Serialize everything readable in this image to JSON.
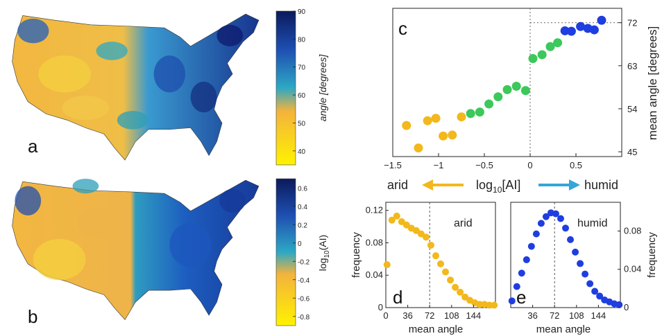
{
  "panels": {
    "a": "a",
    "b": "b",
    "c": "c",
    "d": "d",
    "e": "e"
  },
  "colors": {
    "arid": "#f2b81c",
    "mid": "#3cc85a",
    "humid": "#1e3ee0",
    "dark": "#0d1a6e",
    "teal": "#2e9fb8",
    "map_yellow": "#f4c430",
    "map_orange": "#f0ad3a",
    "map_blue": "#1f5fbf"
  },
  "map_a": {
    "colorbar_label": "angle [degrees]",
    "colorbar_ticks": [
      "90",
      "80",
      "70",
      "60",
      "50",
      "40"
    ],
    "colorbar_tick_values": [
      90,
      80,
      70,
      60,
      50,
      40
    ],
    "colorbar_range": [
      35,
      90
    ]
  },
  "map_b": {
    "colorbar_label_main": "log",
    "colorbar_label_sub": "10",
    "colorbar_label_end": "(AI)",
    "colorbar_ticks": [
      "0.6",
      "0.4",
      "0.2",
      "0",
      "-0.2",
      "-0.4",
      "-0.6",
      "-0.8"
    ],
    "colorbar_tick_values": [
      0.6,
      0.4,
      0.2,
      0,
      -0.2,
      -0.4,
      -0.6,
      -0.8
    ],
    "colorbar_range": [
      -0.9,
      0.7
    ]
  },
  "legend": {
    "arid": "arid",
    "humid": "humid",
    "axis_main": "log",
    "axis_sub": "10",
    "axis_end": "[AI]"
  },
  "chart_data": [
    {
      "id": "c",
      "type": "scatter",
      "ylabel": "mean angle [degrees]",
      "xlim": [
        -1.5,
        1.0
      ],
      "ylim": [
        44,
        75
      ],
      "xticks": [
        -1.5,
        -1,
        -0.5,
        0,
        0.5
      ],
      "xtick_labels": [
        "−1.5",
        "−1",
        "−0.5",
        "0",
        "0.5"
      ],
      "yticks": [
        45,
        54,
        63,
        72
      ],
      "ytick_labels": [
        "45",
        "54",
        "63",
        "72"
      ],
      "reference_lines": {
        "x": 0,
        "y": 72
      },
      "points": [
        {
          "x": -1.35,
          "y": 50.5,
          "group": "arid"
        },
        {
          "x": -1.22,
          "y": 45.8,
          "group": "arid"
        },
        {
          "x": -1.12,
          "y": 51.5,
          "group": "arid"
        },
        {
          "x": -1.03,
          "y": 52.0,
          "group": "arid"
        },
        {
          "x": -0.95,
          "y": 48.3,
          "group": "arid"
        },
        {
          "x": -0.85,
          "y": 48.5,
          "group": "arid"
        },
        {
          "x": -0.75,
          "y": 52.3,
          "group": "arid"
        },
        {
          "x": -0.65,
          "y": 53.0,
          "group": "mid"
        },
        {
          "x": -0.55,
          "y": 53.3,
          "group": "mid"
        },
        {
          "x": -0.45,
          "y": 55.0,
          "group": "mid"
        },
        {
          "x": -0.35,
          "y": 56.5,
          "group": "mid"
        },
        {
          "x": -0.25,
          "y": 58.0,
          "group": "mid"
        },
        {
          "x": -0.15,
          "y": 58.7,
          "group": "mid"
        },
        {
          "x": -0.05,
          "y": 57.8,
          "group": "mid"
        },
        {
          "x": 0.03,
          "y": 64.5,
          "group": "mid"
        },
        {
          "x": 0.13,
          "y": 65.3,
          "group": "mid"
        },
        {
          "x": 0.22,
          "y": 67.0,
          "group": "mid"
        },
        {
          "x": 0.3,
          "y": 67.8,
          "group": "mid"
        },
        {
          "x": 0.38,
          "y": 70.3,
          "group": "humid"
        },
        {
          "x": 0.45,
          "y": 70.2,
          "group": "humid"
        },
        {
          "x": 0.55,
          "y": 71.2,
          "group": "humid"
        },
        {
          "x": 0.63,
          "y": 70.8,
          "group": "humid"
        },
        {
          "x": 0.7,
          "y": 70.5,
          "group": "humid"
        },
        {
          "x": 0.78,
          "y": 72.5,
          "group": "humid"
        }
      ]
    },
    {
      "id": "d",
      "type": "scatter",
      "label": "arid",
      "xlabel": "mean angle",
      "ylabel": "frequency",
      "xlim": [
        0,
        180
      ],
      "ylim": [
        0,
        0.13
      ],
      "xticks": [
        0,
        36,
        72,
        108,
        144
      ],
      "xtick_labels": [
        "0",
        "36",
        "72",
        "108",
        "144"
      ],
      "yticks": [
        0,
        0.04,
        0.08,
        0.12
      ],
      "ytick_labels": [
        "0",
        "0.04",
        "0.08",
        "0.12"
      ],
      "reference_line_x": 72,
      "x": [
        2,
        10,
        18,
        26,
        34,
        42,
        50,
        58,
        66,
        74,
        82,
        90,
        98,
        106,
        114,
        122,
        130,
        138,
        146,
        154,
        162,
        170,
        178
      ],
      "y": [
        0.053,
        0.108,
        0.113,
        0.106,
        0.102,
        0.098,
        0.095,
        0.091,
        0.087,
        0.077,
        0.064,
        0.054,
        0.044,
        0.034,
        0.025,
        0.019,
        0.013,
        0.009,
        0.006,
        0.004,
        0.004,
        0.003,
        0.003
      ]
    },
    {
      "id": "e",
      "type": "scatter",
      "label": "humid",
      "xlabel": "mean angle",
      "ylabel": "frequency",
      "xlim": [
        0,
        180
      ],
      "ylim": [
        0,
        0.11
      ],
      "xticks": [
        36,
        72,
        108,
        144
      ],
      "xtick_labels": [
        "36",
        "72",
        "108",
        "144"
      ],
      "yticks": [
        0,
        0.04,
        0.08
      ],
      "ytick_labels": [
        "0",
        "0.04",
        "0.08"
      ],
      "reference_line_x": 72,
      "x": [
        2,
        10,
        18,
        26,
        34,
        42,
        50,
        58,
        66,
        74,
        82,
        90,
        98,
        106,
        114,
        122,
        130,
        138,
        146,
        154,
        162,
        170,
        178
      ],
      "y": [
        0.007,
        0.022,
        0.036,
        0.05,
        0.064,
        0.077,
        0.088,
        0.095,
        0.099,
        0.098,
        0.093,
        0.083,
        0.071,
        0.058,
        0.046,
        0.035,
        0.025,
        0.017,
        0.012,
        0.008,
        0.006,
        0.004,
        0.003
      ]
    }
  ]
}
